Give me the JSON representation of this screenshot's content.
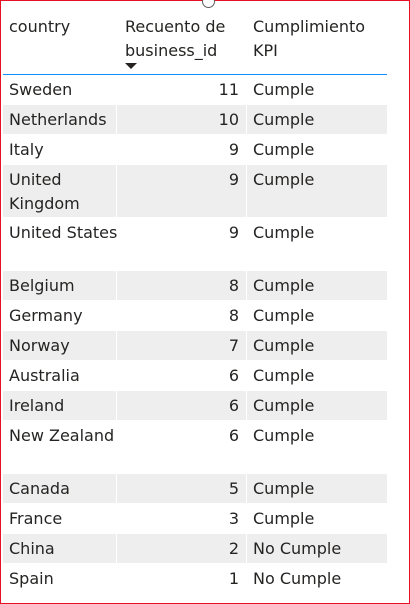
{
  "table": {
    "headers": {
      "country": "country",
      "count": "Recuento de business_id",
      "kpi": "Cumplimiento KPI"
    },
    "rows": [
      {
        "country": "Sweden",
        "count": "11",
        "kpi": "Cumple"
      },
      {
        "country": "Netherlands",
        "count": "10",
        "kpi": "Cumple"
      },
      {
        "country": "Italy",
        "count": "9",
        "kpi": "Cumple"
      },
      {
        "country": "United Kingdom",
        "count": "9",
        "kpi": "Cumple"
      },
      {
        "country": "United States",
        "count": "9",
        "kpi": "Cumple"
      },
      {
        "country": "Belgium",
        "count": "8",
        "kpi": "Cumple"
      },
      {
        "country": "Germany",
        "count": "8",
        "kpi": "Cumple"
      },
      {
        "country": "Norway",
        "count": "7",
        "kpi": "Cumple"
      },
      {
        "country": "Australia",
        "count": "6",
        "kpi": "Cumple"
      },
      {
        "country": "Ireland",
        "count": "6",
        "kpi": "Cumple"
      },
      {
        "country": "New Zealand",
        "count": "6",
        "kpi": "Cumple"
      },
      {
        "country": "Canada",
        "count": "5",
        "kpi": "Cumple"
      },
      {
        "country": "France",
        "count": "3",
        "kpi": "Cumple"
      },
      {
        "country": "China",
        "count": "2",
        "kpi": "No Cumple"
      },
      {
        "country": "Spain",
        "count": "1",
        "kpi": "No Cumple"
      }
    ],
    "sort": {
      "column": "count",
      "direction": "descending"
    }
  },
  "colors": {
    "selection_border": "#e81123",
    "header_underline": "#118dff",
    "alt_row": "#eeeeee",
    "text": "#252423"
  }
}
